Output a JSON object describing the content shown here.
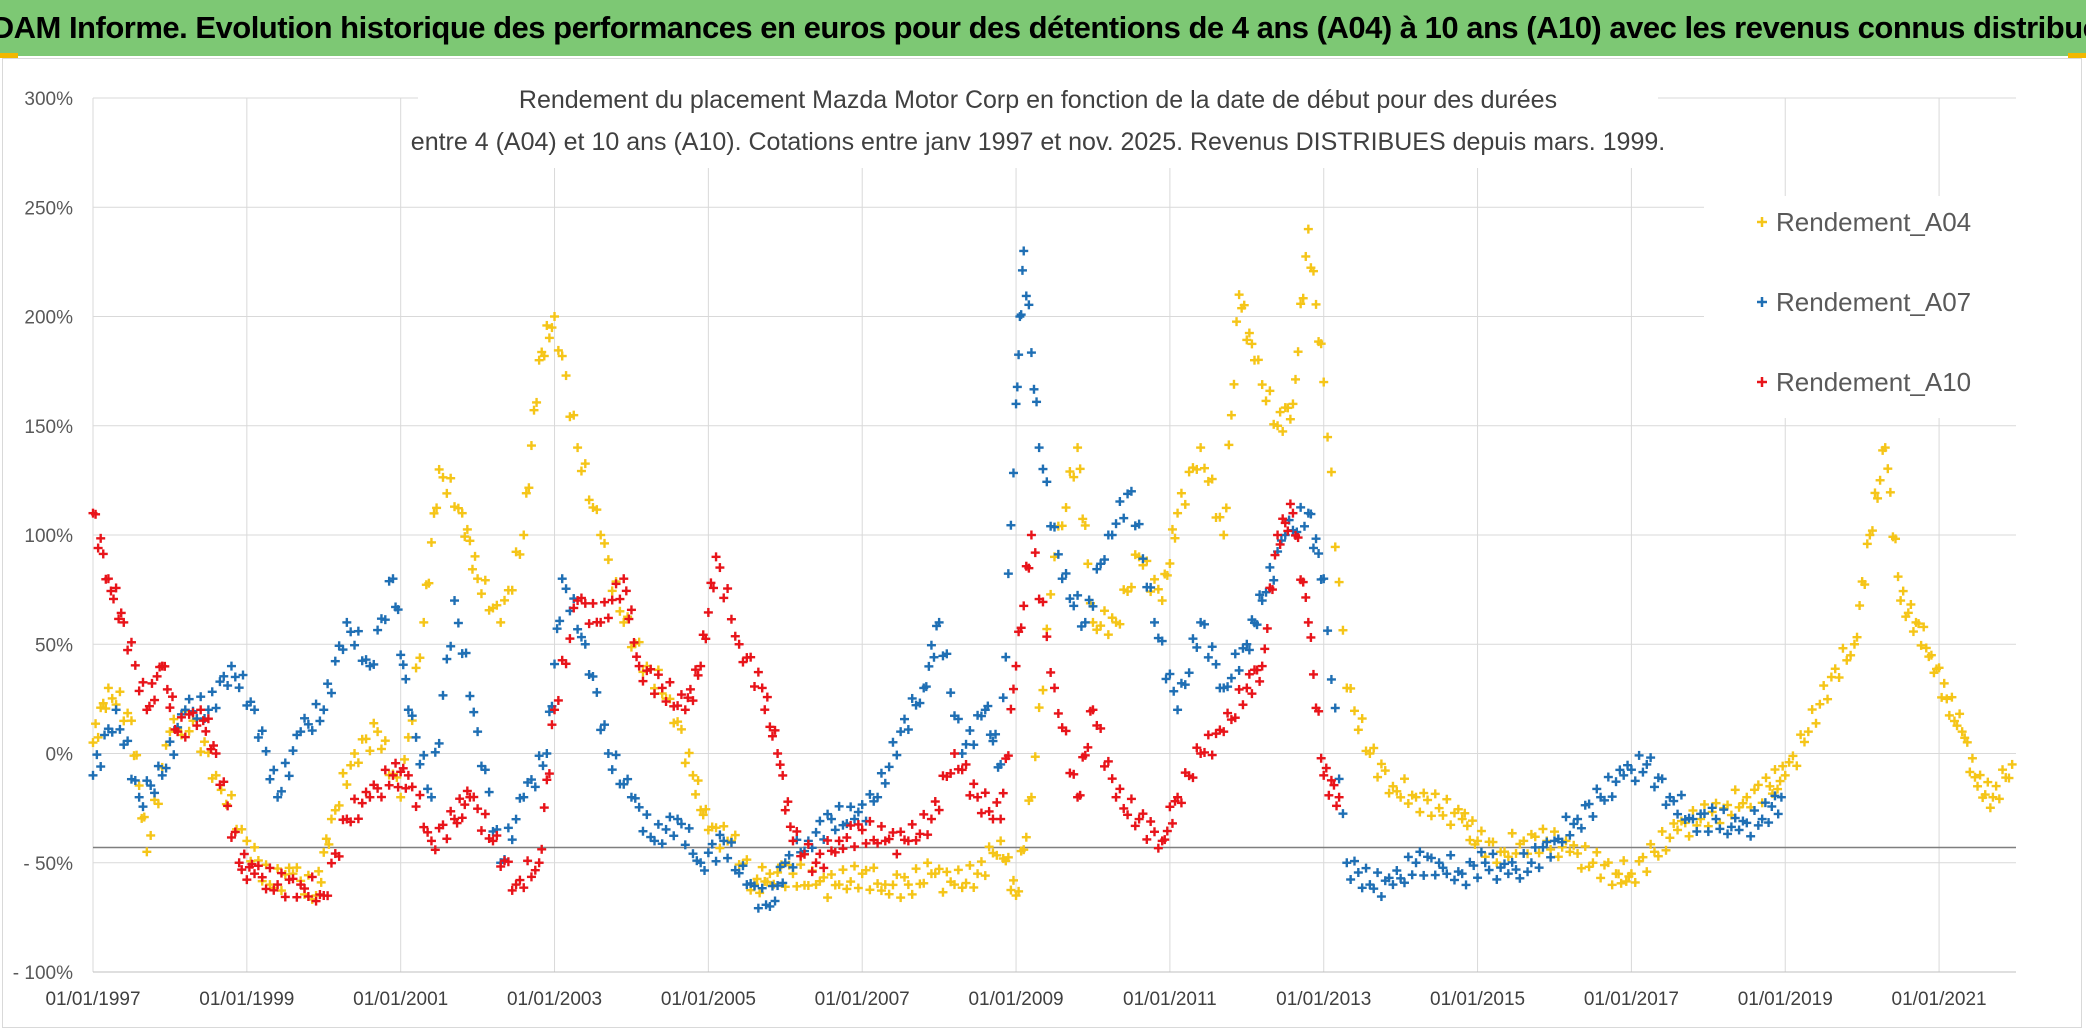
{
  "header": {
    "banner_title": "ADAM Informe. Evolution historique des performances en euros pour des détentions de 4 ans (A04) à 10 ans (A10) avec les revenus connus distribués"
  },
  "chart_data": {
    "type": "scatter",
    "title_line1": "Rendement du placement Mazda Motor Corp en fonction de la date de début pour des durées",
    "title_line2": "entre 4 (A04) et 10 ans (A10). Cotations entre janv 1997 et nov. 2025. Revenus DISTRIBUES depuis mars. 1999.",
    "xlabel": "",
    "ylabel": "",
    "x_range": [
      1997.0,
      2022.0
    ],
    "ylim": [
      -100,
      300
    ],
    "y_ticks": [
      300,
      250,
      200,
      150,
      100,
      50,
      0,
      -50,
      -100
    ],
    "y_tick_labels": [
      "300%",
      "250%",
      "200%",
      "150%",
      "100%",
      "50%",
      "0%",
      "- 50%",
      "- 100%"
    ],
    "x_tick_years": [
      1997,
      1999,
      2001,
      2003,
      2005,
      2007,
      2009,
      2011,
      2013,
      2015,
      2017,
      2019,
      2021
    ],
    "x_tick_labels": [
      "01/01/1997",
      "01/01/1999",
      "01/01/2001",
      "01/01/2003",
      "01/01/2005",
      "01/01/2007",
      "01/01/2009",
      "01/01/2011",
      "01/01/2013",
      "01/01/2015",
      "01/01/2017",
      "01/01/2019",
      "01/01/2021"
    ],
    "reference_line_y": -43,
    "legend_position": "top-right",
    "marker": "+",
    "series": [
      {
        "name": "Rendement_A04",
        "color": "#f5c518",
        "x": [
          1997.0,
          1997.2,
          1997.5,
          1997.7,
          1998.0,
          1998.3,
          1998.6,
          1999.0,
          1999.3,
          1999.6,
          1999.9,
          2000.1,
          2000.4,
          2000.7,
          2001.0,
          2001.3,
          2001.5,
          2001.8,
          2002.0,
          2002.3,
          2002.6,
          2002.8,
          2003.0,
          2003.3,
          2003.6,
          2003.9,
          2004.2,
          2004.5,
          2004.8,
          2005.0,
          2005.3,
          2005.6,
          2005.8,
          2006.1,
          2006.4,
          2006.7,
          2007.0,
          2007.3,
          2007.6,
          2007.9,
          2008.2,
          2008.5,
          2008.8,
          2009.0,
          2009.2,
          2009.5,
          2009.8,
          2010.0,
          2010.3,
          2010.6,
          2010.9,
          2011.1,
          2011.4,
          2011.7,
          2011.9,
          2012.1,
          2012.4,
          2012.6,
          2012.8,
          2013.0,
          2013.3,
          2013.6,
          2013.9,
          2014.2,
          2014.5,
          2014.8,
          2015.0,
          2015.3,
          2015.6,
          2015.9,
          2016.2,
          2016.5,
          2016.8,
          2017.0,
          2017.3,
          2017.6,
          2017.9,
          2018.2,
          2018.5,
          2018.8,
          2019.0,
          2019.3,
          2019.6,
          2019.9,
          2020.1,
          2020.3,
          2020.5,
          2020.7,
          2020.9,
          2021.1,
          2021.3,
          2021.5,
          2021.7,
          2021.95
        ],
        "y": [
          5,
          30,
          15,
          -45,
          10,
          15,
          -10,
          -40,
          -60,
          -55,
          -65,
          -30,
          0,
          10,
          -20,
          60,
          130,
          110,
          80,
          60,
          100,
          180,
          200,
          140,
          100,
          60,
          40,
          25,
          -10,
          -35,
          -40,
          -60,
          -55,
          -55,
          -60,
          -60,
          -55,
          -60,
          -60,
          -55,
          -60,
          -55,
          -40,
          -65,
          -20,
          90,
          140,
          60,
          60,
          90,
          70,
          110,
          140,
          100,
          210,
          180,
          150,
          160,
          240,
          170,
          30,
          0,
          -15,
          -20,
          -25,
          -30,
          -40,
          -45,
          -40,
          -40,
          -45,
          -50,
          -55,
          -55,
          -45,
          -35,
          -30,
          -25,
          -20,
          -15,
          -10,
          10,
          35,
          50,
          100,
          140,
          70,
          60,
          45,
          25,
          10,
          -15,
          -20,
          -5
        ]
      },
      {
        "name": "Rendement_A07",
        "color": "#1f6fb4",
        "x": [
          1997.0,
          1997.3,
          1997.6,
          1997.9,
          1998.2,
          1998.5,
          1998.8,
          1999.1,
          1999.4,
          1999.7,
          2000.0,
          2000.3,
          2000.6,
          2000.9,
          2001.1,
          2001.4,
          2001.7,
          2002.0,
          2002.3,
          2002.6,
          2002.9,
          2003.1,
          2003.4,
          2003.7,
          2004.0,
          2004.3,
          2004.6,
          2004.9,
          2005.2,
          2005.5,
          2005.8,
          2006.0,
          2006.3,
          2006.6,
          2006.9,
          2007.2,
          2007.5,
          2007.8,
          2008.0,
          2008.3,
          2008.6,
          2008.8,
          2009.0,
          2009.1,
          2009.3,
          2009.6,
          2009.9,
          2010.2,
          2010.5,
          2010.8,
          2011.1,
          2011.4,
          2011.7,
          2012.0,
          2012.2,
          2012.5,
          2012.8,
          2013.0,
          2013.3,
          2013.6,
          2013.9,
          2014.2,
          2014.5,
          2014.8,
          2015.1,
          2015.4,
          2015.7,
          2016.0,
          2016.3,
          2016.6,
          2016.9,
          2017.2,
          2017.5,
          2017.8,
          2018.1,
          2018.4,
          2018.7,
          2018.95
        ],
        "y": [
          -10,
          20,
          -20,
          -10,
          20,
          20,
          40,
          20,
          -20,
          10,
          20,
          60,
          40,
          80,
          20,
          -20,
          70,
          10,
          -50,
          -20,
          0,
          80,
          50,
          0,
          -20,
          -40,
          -30,
          -50,
          -40,
          -60,
          -70,
          -50,
          -40,
          -30,
          -30,
          -20,
          10,
          30,
          60,
          0,
          20,
          -5,
          160,
          230,
          140,
          80,
          60,
          100,
          120,
          60,
          20,
          60,
          30,
          50,
          70,
          100,
          110,
          80,
          -50,
          -60,
          -60,
          -50,
          -50,
          -55,
          -50,
          -55,
          -50,
          -40,
          -30,
          -20,
          -10,
          -5,
          -20,
          -30,
          -30,
          -35,
          -30,
          -20
        ]
      },
      {
        "name": "Rendement_A10",
        "color": "#e8141a",
        "x": [
          1997.0,
          1997.2,
          1997.4,
          1997.7,
          1997.9,
          1998.1,
          1998.4,
          1998.6,
          1998.9,
          1999.1,
          1999.4,
          1999.7,
          2000.0,
          2000.3,
          2000.6,
          2000.9,
          2001.1,
          2001.4,
          2001.7,
          2001.9,
          2002.2,
          2002.5,
          2002.8,
          2003.0,
          2003.3,
          2003.6,
          2003.9,
          2004.1,
          2004.4,
          2004.7,
          2004.9,
          2005.1,
          2005.4,
          2005.7,
          2005.9,
          2006.1,
          2006.4,
          2006.7,
          2007.0,
          2007.3,
          2007.6,
          2007.9,
          2008.2,
          2008.5,
          2008.8,
          2009.0,
          2009.2,
          2009.5,
          2009.8,
          2010.0,
          2010.3,
          2010.6,
          2010.9,
          2011.1,
          2011.4,
          2011.7,
          2012.0,
          2012.2,
          2012.4,
          2012.6,
          2012.8,
          2013.0,
          2013.2
        ],
        "y": [
          110,
          80,
          60,
          20,
          40,
          10,
          20,
          0,
          -50,
          -55,
          -60,
          -60,
          -65,
          -30,
          -20,
          -10,
          -10,
          -40,
          -30,
          -20,
          -40,
          -60,
          -50,
          20,
          70,
          60,
          80,
          40,
          30,
          20,
          40,
          90,
          50,
          30,
          0,
          -40,
          -50,
          -40,
          -35,
          -40,
          -40,
          -30,
          0,
          -20,
          -30,
          40,
          100,
          30,
          -20,
          20,
          -20,
          -30,
          -40,
          -20,
          0,
          10,
          30,
          40,
          100,
          110,
          60,
          -10,
          -20
        ]
      }
    ]
  }
}
